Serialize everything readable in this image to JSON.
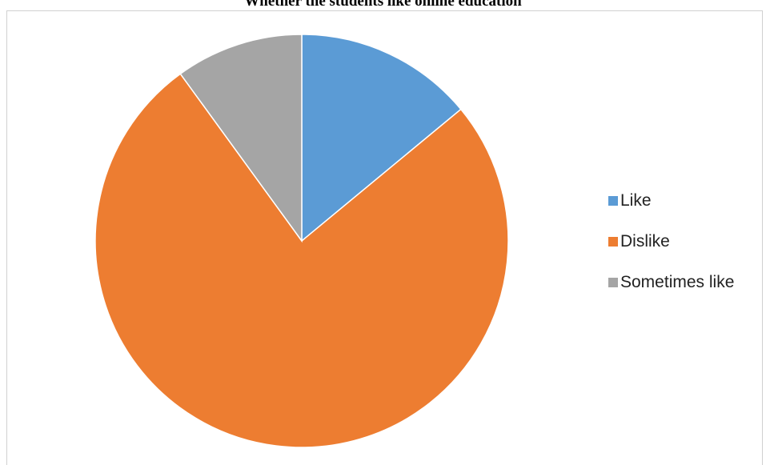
{
  "chart_data": {
    "type": "pie",
    "title": "Whether the students like online education",
    "categories": [
      "Like",
      "Dislike",
      "Sometimes like"
    ],
    "values": [
      14,
      76,
      10
    ],
    "colors": [
      "#5b9bd5",
      "#ed7d31",
      "#a5a5a5"
    ],
    "legend_position": "right"
  }
}
